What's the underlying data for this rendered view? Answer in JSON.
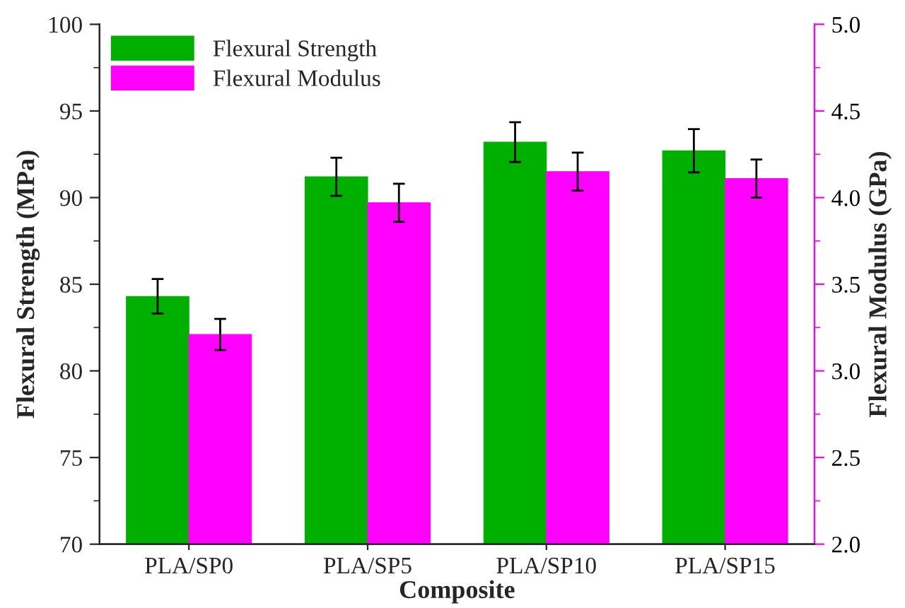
{
  "chart_data": {
    "type": "bar",
    "xlabel": "Composite",
    "ylabel": "Flexural Strength (MPa)",
    "y2label": "Flexural Modulus (GPa)",
    "categories": [
      "PLA/SP0",
      "PLA/SP5",
      "PLA/SP10",
      "PLA/SP15"
    ],
    "series": [
      {
        "name": "Flexural Strength",
        "color": "#00b000",
        "values": [
          84.3,
          91.2,
          93.2,
          92.7
        ],
        "errors": [
          1.0,
          1.1,
          1.15,
          1.25
        ]
      },
      {
        "name": "Flexural Modulus",
        "color": "#ff00ff",
        "values": [
          3.21,
          3.97,
          4.15,
          4.11
        ],
        "errors": [
          0.09,
          0.11,
          0.11,
          0.11
        ],
        "axis": "y2"
      }
    ],
    "ylim": [
      70,
      100
    ],
    "yticks": [
      70,
      75,
      80,
      85,
      90,
      95,
      100
    ],
    "y2lim": [
      2.0,
      5.0
    ],
    "y2ticks": [
      {
        "value": 2.0,
        "label": "2.0"
      },
      {
        "value": 2.5,
        "label": "2.5"
      },
      {
        "value": 3.0,
        "label": "3.0"
      },
      {
        "value": 3.5,
        "label": "3.5"
      },
      {
        "value": 4.0,
        "label": "4.0"
      },
      {
        "value": 4.5,
        "label": "4.5"
      },
      {
        "value": 5.0,
        "label": "5.0"
      }
    ],
    "legend": "top left",
    "grid": false
  }
}
